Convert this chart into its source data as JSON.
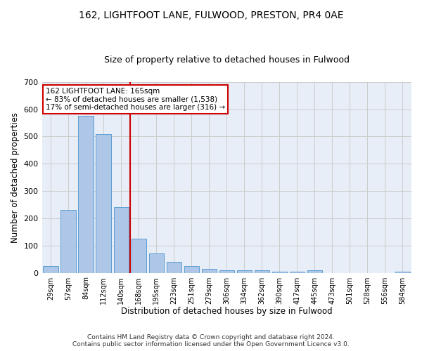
{
  "title1": "162, LIGHTFOOT LANE, FULWOOD, PRESTON, PR4 0AE",
  "title2": "Size of property relative to detached houses in Fulwood",
  "xlabel": "Distribution of detached houses by size in Fulwood",
  "ylabel": "Number of detached properties",
  "categories": [
    "29sqm",
    "57sqm",
    "84sqm",
    "112sqm",
    "140sqm",
    "168sqm",
    "195sqm",
    "223sqm",
    "251sqm",
    "279sqm",
    "306sqm",
    "334sqm",
    "362sqm",
    "390sqm",
    "417sqm",
    "445sqm",
    "473sqm",
    "501sqm",
    "528sqm",
    "556sqm",
    "584sqm"
  ],
  "values": [
    25,
    230,
    575,
    510,
    240,
    125,
    70,
    40,
    25,
    15,
    10,
    10,
    10,
    5,
    5,
    10,
    0,
    0,
    0,
    0,
    5
  ],
  "bar_color": "#aec6e8",
  "bar_edge_color": "#5a9fd4",
  "vline_x": 4.5,
  "vline_color": "#cc0000",
  "annotation_text": "162 LIGHTFOOT LANE: 165sqm\n← 83% of detached houses are smaller (1,538)\n17% of semi-detached houses are larger (316) →",
  "annotation_box_color": "white",
  "annotation_box_edge": "#cc0000",
  "ylim": [
    0,
    700
  ],
  "yticks": [
    0,
    100,
    200,
    300,
    400,
    500,
    600,
    700
  ],
  "grid_color": "#cccccc",
  "bg_color": "#e8eef7",
  "footnote": "Contains HM Land Registry data © Crown copyright and database right 2024.\nContains public sector information licensed under the Open Government Licence v3.0.",
  "title1_fontsize": 10,
  "title2_fontsize": 9,
  "xlabel_fontsize": 8.5,
  "ylabel_fontsize": 8.5,
  "footnote_fontsize": 6.5
}
